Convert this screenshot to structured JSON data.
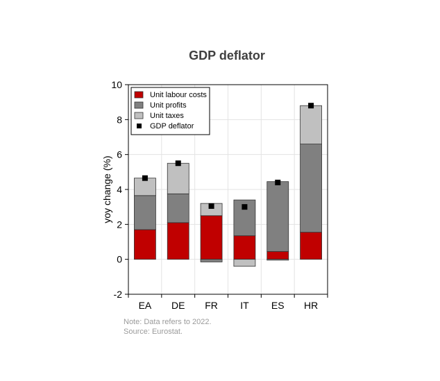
{
  "chart_data": {
    "type": "bar",
    "stacked": true,
    "title": "GDP deflator",
    "ylabel": "yoy change (%)",
    "xlabel": "",
    "ylim": [
      -2,
      10
    ],
    "yticks": [
      -2,
      0,
      2,
      4,
      6,
      8,
      10
    ],
    "grid": true,
    "legend_position": "top-left",
    "categories": [
      "EA",
      "DE",
      "FR",
      "IT",
      "ES",
      "HR"
    ],
    "series": [
      {
        "name": "Unit labour costs",
        "color": "#c00000",
        "values": [
          1.7,
          2.1,
          2.5,
          1.35,
          0.45,
          1.55
        ]
      },
      {
        "name": "Unit profits",
        "color": "#808080",
        "values": [
          1.95,
          1.65,
          -0.15,
          2.05,
          4.0,
          5.05
        ]
      },
      {
        "name": "Unit taxes",
        "color": "#c0c0c0",
        "values": [
          1.0,
          1.75,
          0.7,
          -0.4,
          -0.05,
          2.2
        ]
      }
    ],
    "markers": {
      "name": "GDP deflator",
      "color": "#000000",
      "values": [
        4.65,
        5.5,
        3.05,
        3.0,
        4.4,
        8.8
      ]
    },
    "notes": [
      "Note: Data refers to 2022.",
      "Source: Eurostat."
    ]
  }
}
